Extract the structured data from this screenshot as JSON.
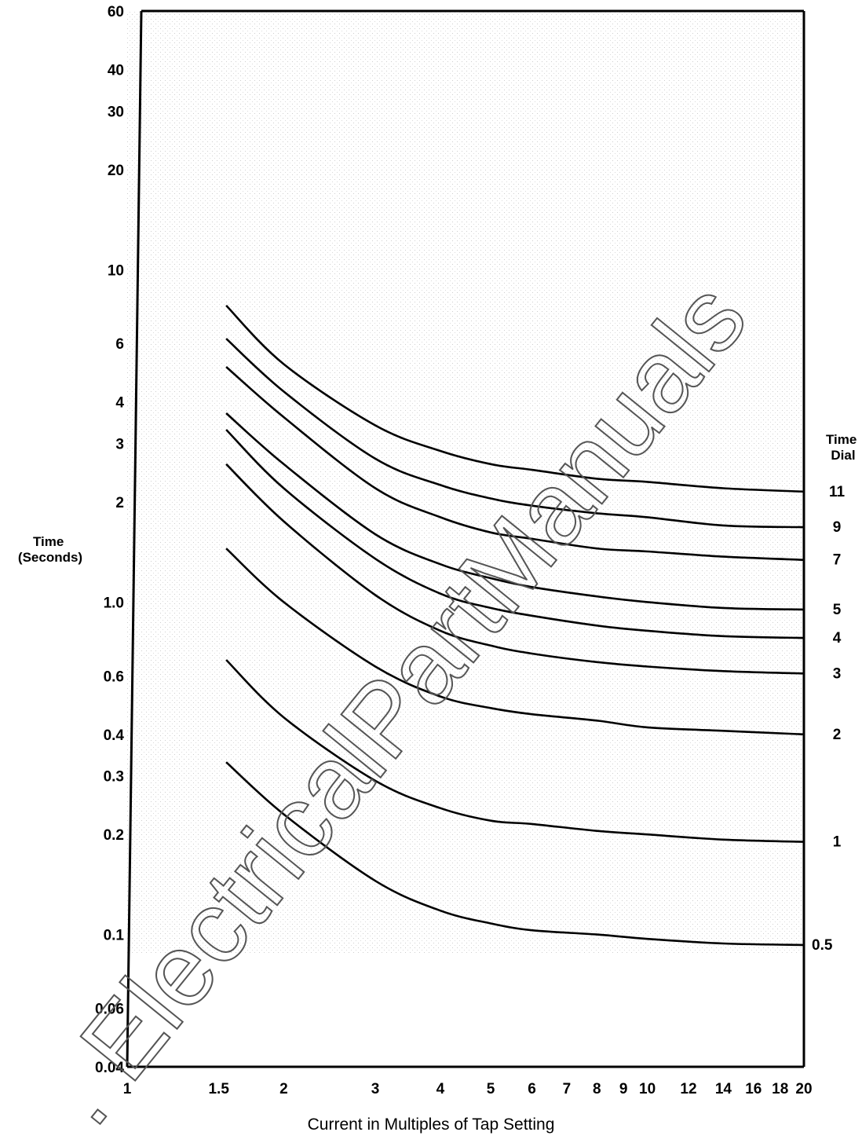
{
  "chart_data": {
    "type": "line",
    "title": "",
    "xlabel": "Current in Multiples of Tap Setting",
    "ylabel": "Time\n(Seconds)",
    "x_scale": "log",
    "y_scale": "log",
    "xlim": [
      1,
      20
    ],
    "ylim": [
      0.04,
      60
    ],
    "grid": false,
    "x_ticks": [
      1,
      1.5,
      2,
      3,
      4,
      5,
      6,
      7,
      8,
      9,
      10,
      12,
      14,
      16,
      18,
      20
    ],
    "x_tick_labels": [
      "1",
      "1.5",
      "2",
      "3",
      "4",
      "5",
      "6",
      "7",
      "8",
      "9",
      "10",
      "12",
      "14",
      "16",
      "18",
      "20"
    ],
    "y_ticks": [
      0.04,
      0.06,
      0.1,
      0.2,
      0.3,
      0.4,
      0.6,
      1.0,
      2,
      3,
      4,
      6,
      10,
      20,
      30,
      40,
      60
    ],
    "y_tick_labels": [
      "0.04",
      "0.06",
      "0.1",
      "0.2",
      "0.3",
      "0.4",
      "0.6",
      "1.0",
      "2",
      "3",
      "4",
      "6",
      "10",
      "20",
      "30",
      "40",
      "60"
    ],
    "legend_title": "Time\nDial",
    "x": [
      1.55,
      2,
      3,
      4,
      5,
      6,
      8,
      10,
      14,
      20
    ],
    "series": [
      {
        "name": "11",
        "values": [
          7.8,
          5.2,
          3.4,
          2.85,
          2.6,
          2.5,
          2.35,
          2.3,
          2.2,
          2.15
        ]
      },
      {
        "name": "9",
        "values": [
          6.2,
          4.3,
          2.7,
          2.25,
          2.05,
          1.95,
          1.85,
          1.8,
          1.7,
          1.68
        ]
      },
      {
        "name": "7",
        "values": [
          5.1,
          3.6,
          2.2,
          1.8,
          1.62,
          1.55,
          1.45,
          1.42,
          1.37,
          1.34
        ]
      },
      {
        "name": "5",
        "values": [
          3.7,
          2.6,
          1.6,
          1.3,
          1.18,
          1.11,
          1.04,
          1.0,
          0.96,
          0.95
        ]
      },
      {
        "name": "4",
        "values": [
          3.3,
          2.2,
          1.35,
          1.06,
          0.96,
          0.91,
          0.85,
          0.82,
          0.79,
          0.78
        ]
      },
      {
        "name": "3",
        "values": [
          2.6,
          1.75,
          1.05,
          0.82,
          0.74,
          0.7,
          0.66,
          0.64,
          0.62,
          0.61
        ]
      },
      {
        "name": "2",
        "values": [
          1.45,
          1.0,
          0.64,
          0.52,
          0.48,
          0.46,
          0.44,
          0.42,
          0.41,
          0.4
        ]
      },
      {
        "name": "1",
        "values": [
          0.67,
          0.45,
          0.29,
          0.24,
          0.22,
          0.215,
          0.205,
          0.2,
          0.193,
          0.19
        ]
      },
      {
        "name": "0.5",
        "values": [
          0.33,
          0.23,
          0.145,
          0.118,
          0.108,
          0.103,
          0.1,
          0.097,
          0.094,
          0.093
        ]
      }
    ]
  },
  "watermark": {
    "text": ". ElectricalPartManuals",
    "color": "#555555"
  }
}
